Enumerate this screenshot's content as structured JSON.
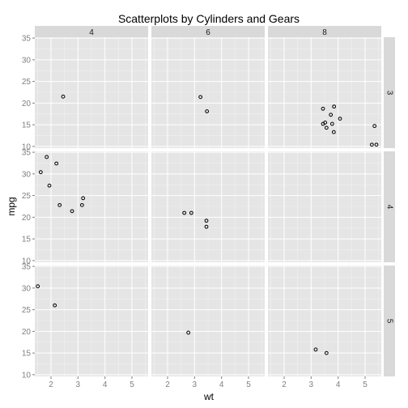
{
  "chart_data": {
    "type": "scatter",
    "title": "Scatterplots by Cylinders and Gears",
    "xlabel": "wt",
    "ylabel": "mpg",
    "facet_columns": [
      "4",
      "6",
      "8"
    ],
    "facet_rows": [
      "3",
      "4",
      "5"
    ],
    "x_ticks": [
      2,
      3,
      4,
      5
    ],
    "y_ticks": [
      10,
      15,
      20,
      25,
      30,
      35
    ],
    "xlim": [
      1.4,
      5.6
    ],
    "ylim": [
      9.6,
      35.2
    ],
    "grid": true,
    "panels": [
      {
        "col": "4",
        "row": "3",
        "points": [
          [
            2.45,
            21.5
          ]
        ]
      },
      {
        "col": "6",
        "row": "3",
        "points": [
          [
            3.22,
            21.4
          ],
          [
            3.46,
            18.1
          ]
        ]
      },
      {
        "col": "8",
        "row": "3",
        "points": [
          [
            3.44,
            18.7
          ],
          [
            3.57,
            14.3
          ],
          [
            4.07,
            16.4
          ],
          [
            3.73,
            17.3
          ],
          [
            3.78,
            15.2
          ],
          [
            5.25,
            10.4
          ],
          [
            5.42,
            10.4
          ],
          [
            5.35,
            14.7
          ],
          [
            3.52,
            15.5
          ],
          [
            3.44,
            15.2
          ],
          [
            3.84,
            13.3
          ],
          [
            3.85,
            19.2
          ]
        ]
      },
      {
        "col": "4",
        "row": "4",
        "points": [
          [
            2.32,
            22.8
          ],
          [
            3.19,
            24.4
          ],
          [
            3.15,
            22.8
          ],
          [
            2.2,
            32.4
          ],
          [
            1.62,
            30.4
          ],
          [
            1.84,
            33.9
          ],
          [
            1.94,
            27.3
          ],
          [
            2.78,
            21.4
          ]
        ]
      },
      {
        "col": "6",
        "row": "4",
        "points": [
          [
            2.62,
            21.0
          ],
          [
            2.88,
            21.0
          ],
          [
            3.44,
            19.2
          ],
          [
            3.44,
            17.8
          ]
        ]
      },
      {
        "col": "8",
        "row": "4",
        "points": []
      },
      {
        "col": "4",
        "row": "5",
        "points": [
          [
            2.14,
            26.0
          ],
          [
            1.51,
            30.4
          ]
        ]
      },
      {
        "col": "6",
        "row": "5",
        "points": [
          [
            2.77,
            19.7
          ]
        ]
      },
      {
        "col": "8",
        "row": "5",
        "points": [
          [
            3.17,
            15.8
          ],
          [
            3.57,
            15.0
          ]
        ]
      }
    ]
  }
}
